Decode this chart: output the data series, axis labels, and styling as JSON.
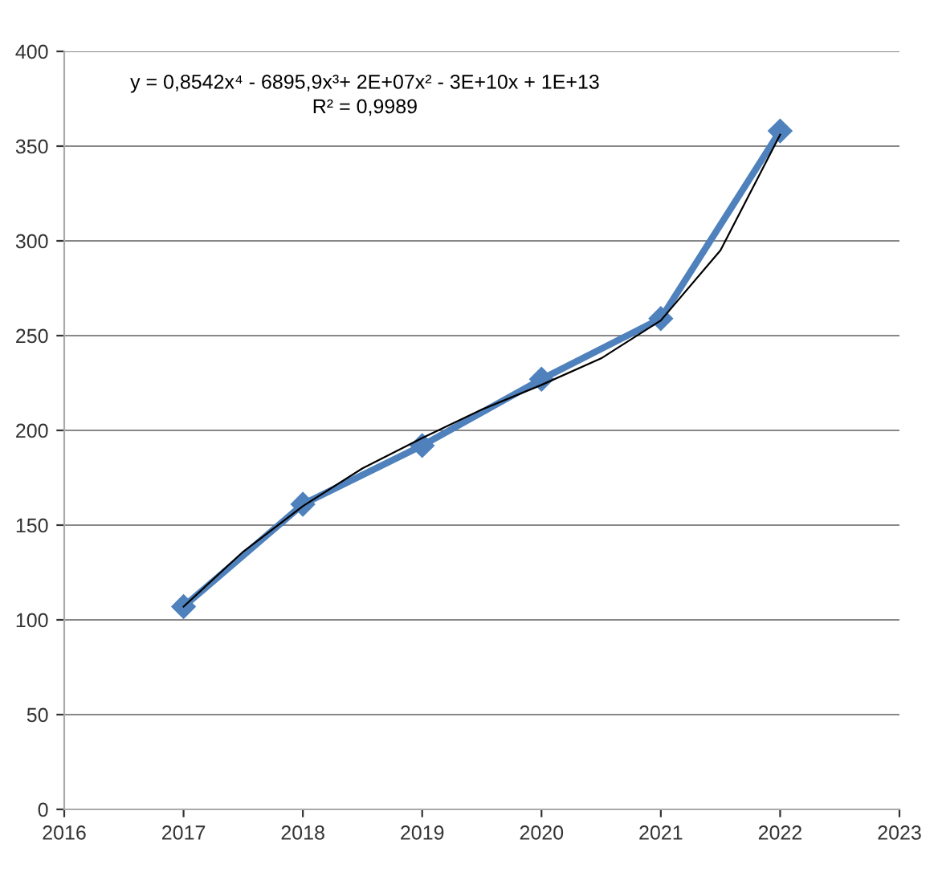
{
  "chart_data": {
    "type": "line",
    "x": [
      2017,
      2018,
      2019,
      2020,
      2021,
      2022
    ],
    "series": [
      {
        "color": "#4f81bd",
        "values": [
          107,
          161,
          192,
          227,
          259,
          358
        ],
        "marker": "diamond"
      },
      {
        "type": "line",
        "color": "#000000",
        "x": [
          2017,
          2017.5,
          2018,
          2018.5,
          2019,
          2019.5,
          2020,
          2020.5,
          2021,
          2021.5,
          2022
        ],
        "values": [
          107,
          136,
          160,
          180,
          196,
          211,
          224,
          238,
          258,
          295,
          356
        ],
        "marker": "none"
      }
    ],
    "xlim": [
      2016,
      2023
    ],
    "xticks": [
      2016,
      2017,
      2018,
      2019,
      2020,
      2021,
      2022,
      2023
    ],
    "ylim": [
      0,
      400
    ],
    "yticks": [
      0,
      50,
      100,
      150,
      200,
      250,
      300,
      350,
      400
    ],
    "grid": "y",
    "legend": false,
    "annotations": [
      "y = 0,8542x⁴ - 6895,9x³+ 2E+07x² - 3E+10x + 1E+13\nR² = 0,9989"
    ]
  }
}
